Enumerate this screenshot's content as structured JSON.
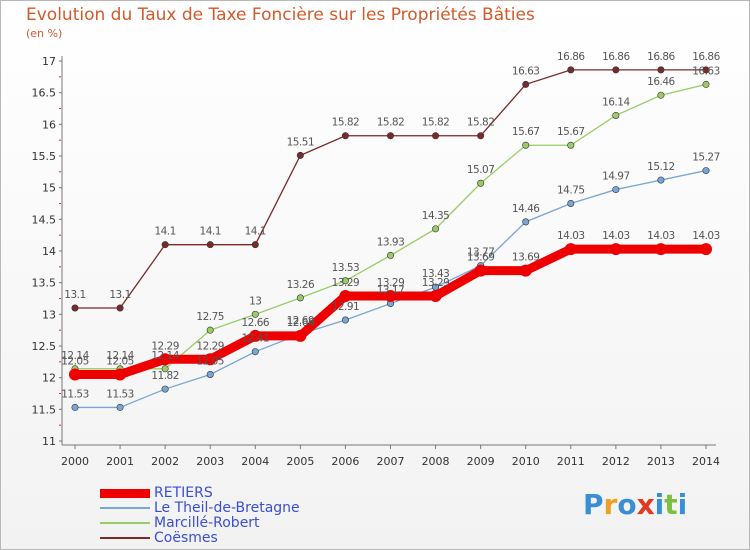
{
  "header": {
    "title": "Evolution du Taux de Taxe Foncière sur les Propriétés Bâties",
    "unit": "(en %)"
  },
  "logo": {
    "text": "Proxiti",
    "colors": [
      "#3a8fd4",
      "#f0a020",
      "#3a8fd4",
      "#e03a20",
      "#3a8fd4",
      "#7bc040",
      "#3a8fd4"
    ]
  },
  "chart_data": {
    "type": "line",
    "x": [
      "2000",
      "2001",
      "2002",
      "2003",
      "2004",
      "2005",
      "2006",
      "2007",
      "2008",
      "2009",
      "2010",
      "2011",
      "2012",
      "2013",
      "2014"
    ],
    "ylim": [
      11,
      17
    ],
    "yticks": [
      "11",
      "11.5",
      "12",
      "12.5",
      "13",
      "13.5",
      "14",
      "14.5",
      "15",
      "15.5",
      "16",
      "16.5",
      "17"
    ],
    "grid": false,
    "legend_position": "bottom-left",
    "series": [
      {
        "name": "RETIERS",
        "color": "#ee0000",
        "values": [
          12.05,
          12.05,
          12.29,
          12.29,
          12.66,
          12.66,
          13.29,
          13.29,
          13.29,
          13.69,
          13.69,
          14.03,
          14.03,
          14.03,
          14.03
        ],
        "labels": [
          "12.05",
          "12.05",
          "12.29",
          "12.29",
          "12.66",
          "12.66",
          "13.29",
          "13.29",
          "13.29",
          "13.69",
          "13.69",
          "14.03",
          "14.03",
          "14.03",
          "14.03"
        ]
      },
      {
        "name": "Le Theil-de-Bretagne",
        "color": "#7aa6d6",
        "values": [
          11.53,
          11.53,
          11.82,
          12.05,
          12.41,
          12.69,
          12.91,
          13.17,
          13.43,
          13.77,
          14.46,
          14.75,
          14.97,
          15.12,
          15.27
        ],
        "labels": [
          "11.53",
          "11.53",
          "11.82",
          "12.05",
          "12.41",
          "12.69",
          "12.91",
          "13.17",
          "13.43",
          "13.77",
          "14.46",
          "14.75",
          "14.97",
          "15.12",
          "15.27"
        ]
      },
      {
        "name": "Marcillé-Robert",
        "color": "#99cc66",
        "values": [
          12.14,
          12.14,
          12.14,
          12.75,
          13,
          13.26,
          13.53,
          13.93,
          14.35,
          15.07,
          15.67,
          15.67,
          16.14,
          16.46,
          16.63
        ],
        "labels": [
          "12.14",
          "12.14",
          "12.14",
          "12.75",
          "13",
          "13.26",
          "13.53",
          "13.93",
          "14.35",
          "15.07",
          "15.67",
          "15.67",
          "16.14",
          "16.46",
          "16.63"
        ]
      },
      {
        "name": "Coësmes",
        "color": "#7a2a2a",
        "values": [
          13.1,
          13.1,
          14.1,
          14.1,
          14.1,
          15.51,
          15.82,
          15.82,
          15.82,
          15.82,
          16.63,
          16.86,
          16.86,
          16.86,
          16.86
        ],
        "labels": [
          "13.1",
          "13.1",
          "14.1",
          "14.1",
          "14.1",
          "15.51",
          "15.82",
          "15.82",
          "15.82",
          "15.82",
          "16.63",
          "16.86",
          "16.86",
          "16.86",
          "16.86"
        ]
      }
    ]
  }
}
